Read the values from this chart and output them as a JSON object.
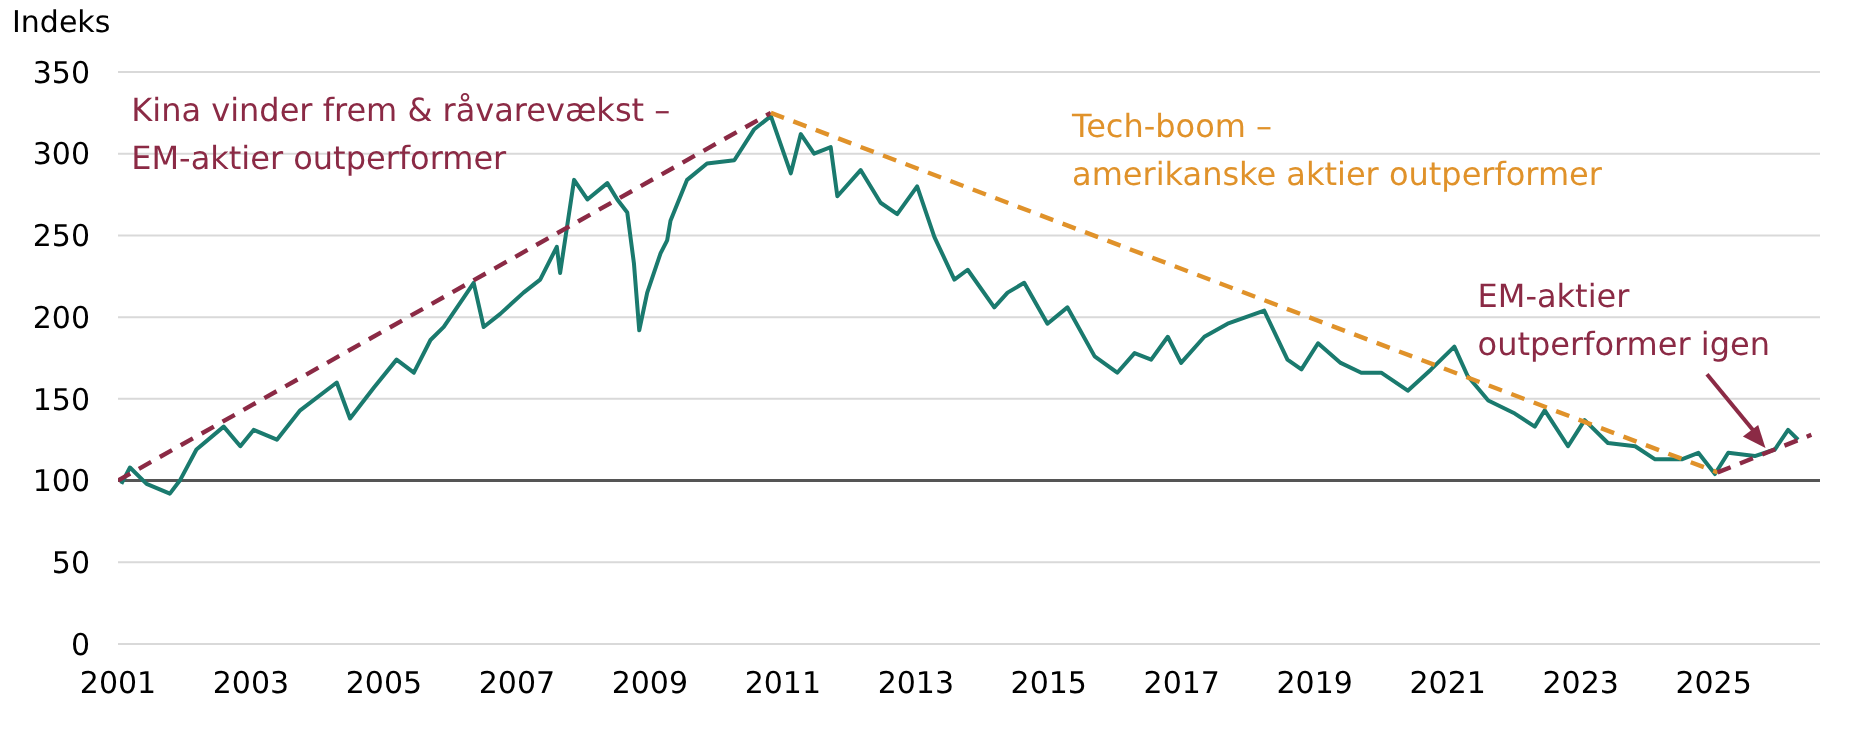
{
  "chart_data": {
    "type": "line",
    "ylabel": "Indeks",
    "xlim": [
      2001,
      2026.6
    ],
    "xticks": [
      2001,
      2003,
      2005,
      2007,
      2009,
      2011,
      2013,
      2015,
      2017,
      2019,
      2021,
      2023,
      2025
    ],
    "ylim": [
      0,
      350
    ],
    "yticks": [
      0,
      50,
      100,
      150,
      200,
      250,
      300,
      350
    ],
    "grid": "y",
    "marker": "none",
    "ref_lines": [
      {
        "axis": "y",
        "value": 100,
        "color": "#555555"
      }
    ],
    "annotations": [
      "Kina vinder frem & råvarevækst –\nEM-aktier outperformer",
      "Tech-boom –\namerikanske aktier outperformer",
      "EM-aktier\noutperformer igen"
    ],
    "series": [
      {
        "color": "#1a7a6e",
        "line_style": "solid",
        "x": [
          2001.05,
          2001.18,
          2001.43,
          2001.78,
          2001.93,
          2002.18,
          2002.59,
          2002.84,
          2003.04,
          2003.39,
          2003.74,
          2004.29,
          2004.49,
          2004.85,
          2005.19,
          2005.45,
          2005.7,
          2005.9,
          2006.2,
          2006.35,
          2006.5,
          2006.75,
          2007.1,
          2007.35,
          2007.6,
          2007.65,
          2007.86,
          2008.06,
          2008.36,
          2008.51,
          2008.66,
          2008.76,
          2008.84,
          2008.96,
          2009.16,
          2009.26,
          2009.31,
          2009.56,
          2009.86,
          2010.27,
          2010.57,
          2010.82,
          2011.12,
          2011.27,
          2011.47,
          2011.72,
          2011.82,
          2012.17,
          2012.47,
          2012.72,
          2013.02,
          2013.28,
          2013.58,
          2013.78,
          2014.18,
          2014.38,
          2014.63,
          2014.98,
          2015.28,
          2015.69,
          2016.03,
          2016.29,
          2016.54,
          2016.79,
          2016.99,
          2017.34,
          2017.69,
          2018.24,
          2018.59,
          2018.8,
          2019.05,
          2019.39,
          2019.7,
          2020.0,
          2020.4,
          2020.75,
          2021.1,
          2021.3,
          2021.61,
          2022.01,
          2022.31,
          2022.46,
          2022.81,
          2023.06,
          2023.41,
          2023.82,
          2024.12,
          2024.52,
          2024.77,
          2025.02,
          2025.22,
          2025.62,
          2025.92,
          2026.12,
          2026.27
        ],
        "values": [
          98,
          108,
          98,
          92,
          100,
          119,
          133,
          121,
          131,
          125,
          143,
          160,
          138,
          157,
          174,
          166,
          186,
          194,
          212,
          221,
          194,
          202,
          215,
          223,
          243,
          227,
          284,
          272,
          282,
          272,
          264,
          233,
          192,
          215,
          239,
          247,
          259,
          284,
          294,
          296,
          315,
          323,
          288,
          312,
          300,
          304,
          274,
          290,
          270,
          263,
          280,
          249,
          223,
          229,
          206,
          215,
          221,
          196,
          206,
          176,
          166,
          178,
          174,
          188,
          172,
          188,
          196,
          204,
          174,
          168,
          184,
          172,
          166,
          166,
          155,
          168,
          182,
          164,
          149,
          141,
          133,
          143,
          121,
          137,
          123,
          121,
          113,
          113,
          117,
          104,
          117,
          115,
          119,
          131,
          125
        ]
      },
      {
        "type": "line",
        "color": "#8b2a45",
        "line_style": "dashed",
        "x": [
          2001,
          2010.82
        ],
        "values": [
          100,
          325
        ]
      },
      {
        "type": "line",
        "color": "#e0922a",
        "line_style": "dashed",
        "x": [
          2010.82,
          2025.06
        ],
        "values": [
          325,
          105
        ]
      },
      {
        "type": "line",
        "color": "#8b2a45",
        "line_style": "dashed",
        "x": [
          2025.06,
          2026.47
        ],
        "values": [
          105,
          128
        ]
      }
    ]
  }
}
